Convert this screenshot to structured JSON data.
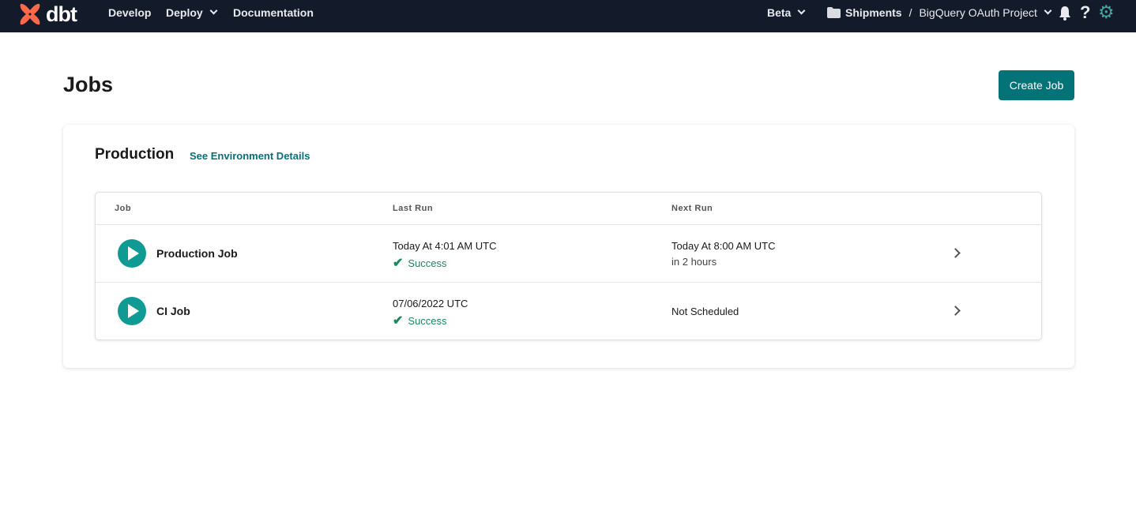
{
  "nav": {
    "logo": "dbt",
    "items": [
      "Develop",
      "Deploy",
      "Documentation"
    ],
    "beta": "Beta",
    "account": "Shipments",
    "separator": "/",
    "project": "BigQuery OAuth Project"
  },
  "page": {
    "title": "Jobs",
    "create_button": "Create Job"
  },
  "environment": {
    "name": "Production",
    "details_link": "See Environment Details"
  },
  "table": {
    "headers": [
      "Job",
      "Last Run",
      "Next Run"
    ],
    "rows": [
      {
        "job": "Production Job",
        "last_run": "Today At 4:01 AM UTC",
        "last_status": "Success",
        "next_run": "Today At 8:00 AM UTC",
        "next_sub": "in 2 hours"
      },
      {
        "job": "CI Job",
        "last_run": "07/06/2022 UTC",
        "last_status": "Success",
        "next_run": "Not Scheduled"
      }
    ]
  },
  "colors": {
    "accent": "#047377",
    "success": "#1c8a5b",
    "nav_bg": "#131a29",
    "logo": "#ff694a"
  }
}
